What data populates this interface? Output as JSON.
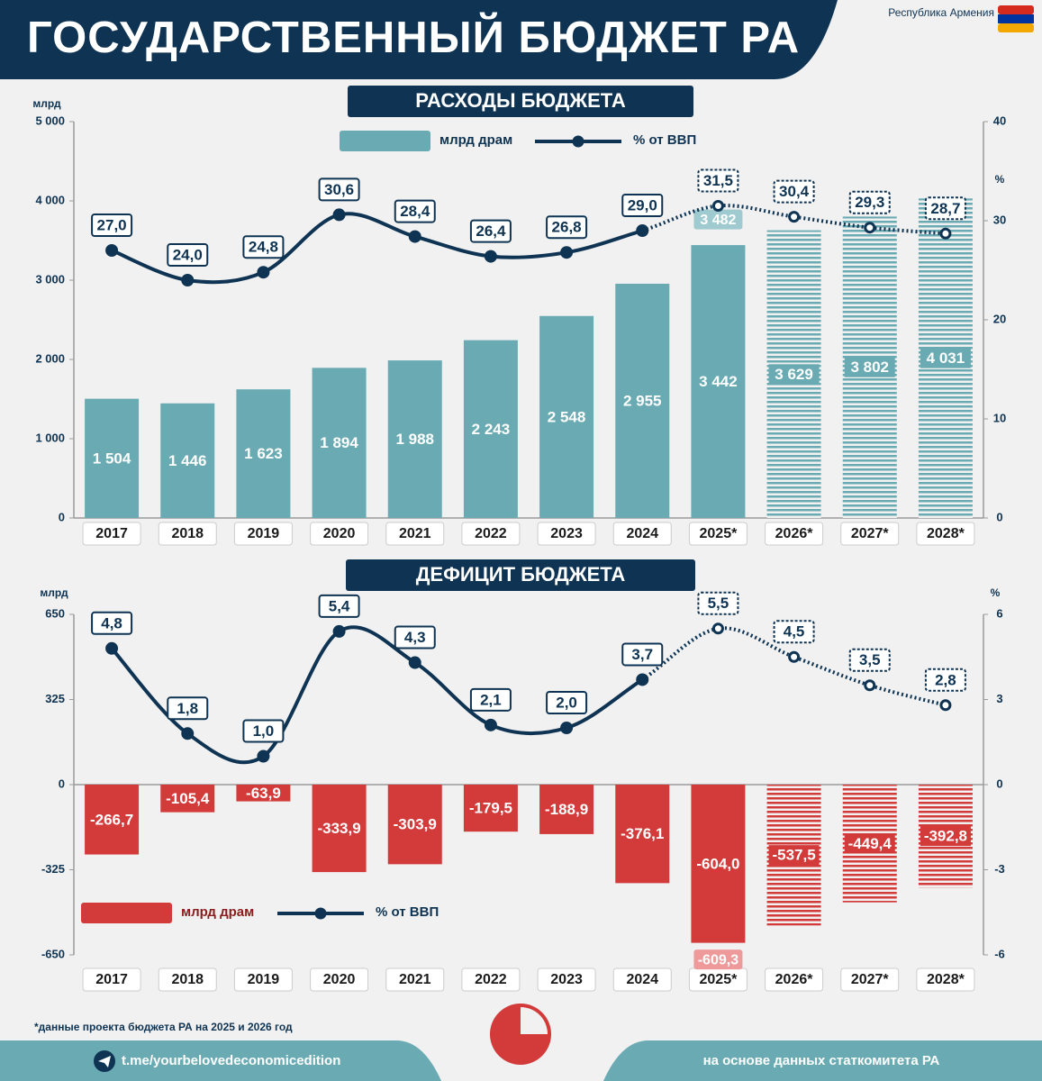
{
  "header": {
    "title": "ГОСУДАРСТВЕННЫЙ БЮДЖЕТ РА",
    "country": "Республика Армения"
  },
  "chart_data": [
    {
      "type": "bar",
      "title": "РАСХОДЫ БЮДЖЕТА",
      "y_label": "млрд",
      "y2_label": "%",
      "categories": [
        "2017",
        "2018",
        "2019",
        "2020",
        "2021",
        "2022",
        "2023",
        "2024",
        "2025*",
        "2026*",
        "2027*",
        "2028*"
      ],
      "ylim": [
        0,
        5000
      ],
      "yticks": [
        0,
        {
          "value": 1000,
          "label": "1 000"
        },
        {
          "value": 2000,
          "label": "2 000"
        },
        {
          "value": 3000,
          "label": "3 000"
        },
        {
          "value": 4000,
          "label": "4 000"
        },
        {
          "value": 5000,
          "label": "5 000"
        }
      ],
      "y2lim": [
        0,
        40
      ],
      "y2ticks": [
        0,
        10,
        20,
        30,
        40
      ],
      "grid": false,
      "legend": "top",
      "series": [
        {
          "name": "млрд драм",
          "color": "#6aabb3",
          "values": [
            1504,
            1446,
            1623,
            1894,
            1988,
            2243,
            2548,
            2955,
            3442,
            3629,
            3802,
            4031
          ],
          "value_labels": [
            "1 504",
            "1 446",
            "1 623",
            "1 894",
            "1 988",
            "2 243",
            "2 548",
            "2 955",
            "3 442",
            "3 629",
            "3 802",
            "4 031"
          ]
        },
        {
          "name": "% от ВВП",
          "color": "#0f3453",
          "axis": "y2",
          "values": [
            27.0,
            24.0,
            24.8,
            30.6,
            28.4,
            26.4,
            26.8,
            29.0,
            31.5,
            30.4,
            29.3,
            28.7
          ],
          "value_labels": [
            "27,0",
            "24,0",
            "24,8",
            "30,6",
            "28,4",
            "26,4",
            "26,8",
            "29,0",
            "31,5",
            "30,4",
            "29,3",
            "28,7"
          ]
        }
      ],
      "annotations": [
        {
          "category": "2025*",
          "value": 3482,
          "label": "3 482"
        }
      ]
    },
    {
      "type": "bar",
      "title": "ДЕФИЦИТ БЮДЖЕТА",
      "y_label": "млрд",
      "y2_label": "%",
      "categories": [
        "2017",
        "2018",
        "2019",
        "2020",
        "2021",
        "2022",
        "2023",
        "2024",
        "2025*",
        "2026*",
        "2027*",
        "2028*"
      ],
      "ylim": [
        -650,
        650
      ],
      "yticks": [
        -650,
        -325,
        0,
        325,
        650
      ],
      "y2lim": [
        -6,
        6
      ],
      "y2ticks": [
        -6,
        -3,
        0,
        3,
        6
      ],
      "grid": false,
      "legend": "lower left",
      "series": [
        {
          "name": "млрд драм",
          "color": "#d33a3a",
          "values": [
            -266.7,
            -105.4,
            -63.9,
            -333.9,
            -303.9,
            -179.5,
            -188.9,
            -376.1,
            -604.0,
            -537.5,
            -449.4,
            -392.8
          ],
          "value_labels": [
            "-266,7",
            "-105,4",
            "-63,9",
            "-333,9",
            "-303,9",
            "-179,5",
            "-188,9",
            "-376,1",
            "-604,0",
            "-537,5",
            "-449,4",
            "-392,8"
          ]
        },
        {
          "name": "% от ВВП",
          "color": "#0f3453",
          "axis": "y2",
          "values": [
            4.8,
            1.8,
            1.0,
            5.4,
            4.3,
            2.1,
            2.0,
            3.7,
            5.5,
            4.5,
            3.5,
            2.8
          ],
          "value_labels": [
            "4,8",
            "1,8",
            "1,0",
            "5,4",
            "4,3",
            "2,1",
            "2,0",
            "3,7",
            "5,5",
            "4,5",
            "3,5",
            "2,8"
          ]
        }
      ],
      "annotations": [
        {
          "category": "2025*",
          "value": -609.3,
          "label": "-609,3"
        }
      ]
    }
  ],
  "footer": {
    "note": "*данные проекта бюджета РА на 2025 и 2026 год",
    "link": "t.me/yourbelovedeconomicedition",
    "source": "на основе данных статкомитета РА"
  }
}
